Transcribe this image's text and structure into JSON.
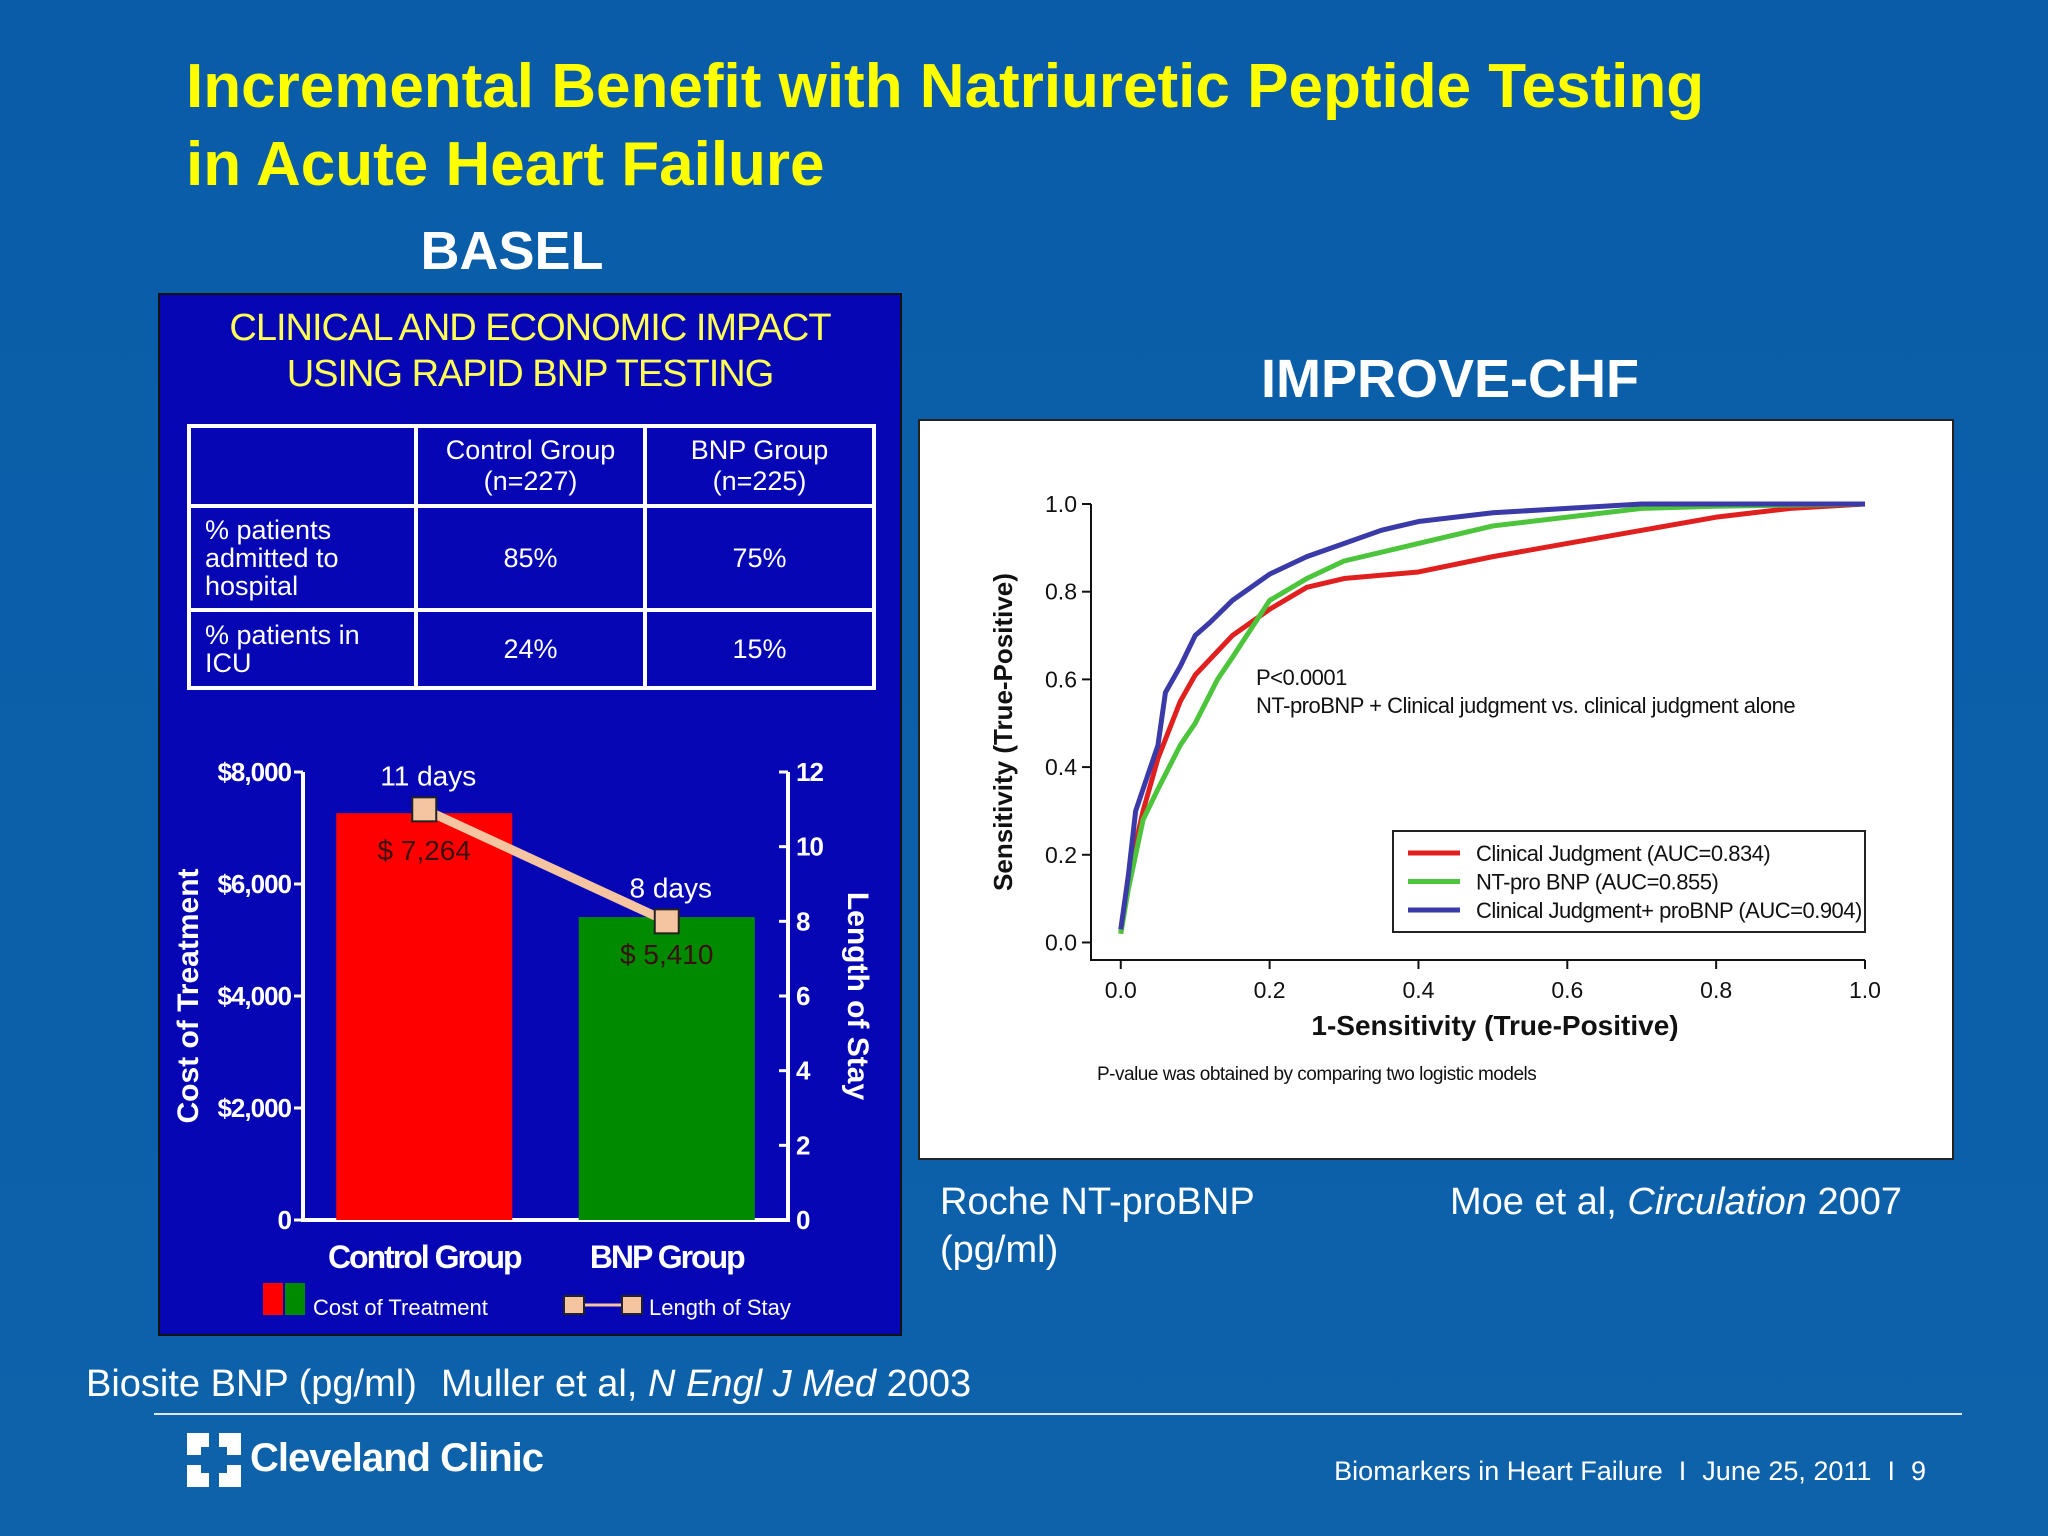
{
  "slide": {
    "title": "Incremental Benefit with Natriuretic Peptide Testing\nin Acute Heart Failure",
    "left_heading": "BASEL",
    "right_heading": "IMPROVE-CHF",
    "right_assay": "Roche NT-proBNP\n(pg/ml)",
    "right_citation": [
      "Moe et al, ",
      "Circulation",
      " 2007"
    ],
    "left_assay": "Biosite BNP (pg/ml)",
    "left_citation": [
      "Muller et al, ",
      "N Engl J Med",
      " 2003"
    ],
    "logo": "Cleveland Clinic",
    "footer": {
      "topic": "Biomarkers in Heart Failure",
      "separator": "I",
      "date": "June 25, 2011",
      "page": "9"
    }
  },
  "table": {
    "title": "CLINICAL AND ECONOMIC IMPACT\nUSING RAPID BNP TESTING",
    "header": [
      "Control Group\n(n=227)",
      "BNP Group\n(n=225)"
    ],
    "rows": [
      [
        "% patients\nadmitted to\nhospital",
        "85%",
        "75%"
      ],
      [
        "% patients in\nICU",
        "24%",
        "15%"
      ]
    ]
  },
  "chart_data": [
    {
      "type": "bar",
      "categories": [
        "Control Group",
        "BNP Group"
      ],
      "y_label": "Cost of Treatment",
      "y2_label": "Length of Stay",
      "ylim": [
        0,
        8000
      ],
      "yticks": [
        0,
        {
          "value": 2000,
          "label": "$2,000"
        },
        {
          "value": 4000,
          "label": "$4,000"
        },
        {
          "value": 6000,
          "label": "$6,000"
        },
        {
          "value": 8000,
          "label": "$8,000"
        }
      ],
      "y2lim": [
        0,
        12
      ],
      "y2ticks": [
        0,
        2,
        4,
        6,
        8,
        10,
        12
      ],
      "series": [
        {
          "name": "Cost of Treatment",
          "colors": [
            "#ff0000",
            "#008a00"
          ],
          "values": [
            7264,
            5410
          ],
          "value_labels": [
            "$ 7,264",
            "$ 5,410"
          ]
        },
        {
          "name": "Length of Stay",
          "type": "line",
          "axis": "y2",
          "color": "#f5c4a0",
          "values": [
            11,
            8
          ],
          "value_labels": [
            "11 days",
            "8 days"
          ]
        }
      ]
    },
    {
      "type": "line",
      "x_label": "1-Sensitivity (True-Positive)",
      "y_label": "Sensitivity (True-Positive)",
      "xlim": [
        -0.04,
        1.0
      ],
      "ylim": [
        -0.04,
        1.0
      ],
      "xticks": [
        {
          "value": 0,
          "label": "0.0"
        },
        0.2,
        0.4,
        0.6,
        0.8,
        {
          "value": 1,
          "label": "1.0"
        }
      ],
      "yticks": [
        {
          "value": 0,
          "label": "0.0"
        },
        0.2,
        0.4,
        0.6,
        0.8,
        {
          "value": 1,
          "label": "1.0"
        }
      ],
      "grid": false,
      "legend": "lower right",
      "annotations": [
        "P<0.0001",
        "NT-proBNP + Clinical judgment vs. clinical judgment alone"
      ],
      "footnote": "P-value was obtained by comparing two logistic models",
      "series": [
        {
          "name": "Clinical Judgment (AUC=0.834)",
          "color": "#e0201e",
          "x": [
            0,
            0.01,
            0.03,
            0.05,
            0.08,
            0.1,
            0.15,
            0.2,
            0.25,
            0.3,
            0.4,
            0.5,
            0.6,
            0.7,
            0.8,
            0.9,
            1.0
          ],
          "values": [
            0.02,
            0.15,
            0.3,
            0.42,
            0.55,
            0.61,
            0.7,
            0.76,
            0.81,
            0.83,
            0.845,
            0.88,
            0.91,
            0.94,
            0.97,
            0.99,
            1.0
          ]
        },
        {
          "name": "NT-pro BNP (AUC=0.855)",
          "color": "#4cc43c",
          "x": [
            0,
            0.01,
            0.02,
            0.03,
            0.05,
            0.08,
            0.1,
            0.13,
            0.15,
            0.2,
            0.25,
            0.3,
            0.4,
            0.5,
            0.6,
            0.7,
            0.8,
            1.0
          ],
          "values": [
            0.02,
            0.12,
            0.2,
            0.28,
            0.35,
            0.45,
            0.5,
            0.6,
            0.65,
            0.78,
            0.83,
            0.87,
            0.91,
            0.95,
            0.97,
            0.99,
            0.995,
            1.0
          ]
        },
        {
          "name": "Clinical Judgment+ proBNP (AUC=0.904)",
          "color": "#3a3aa8",
          "x": [
            0,
            0.01,
            0.02,
            0.04,
            0.05,
            0.06,
            0.08,
            0.1,
            0.12,
            0.15,
            0.2,
            0.25,
            0.3,
            0.35,
            0.4,
            0.5,
            0.6,
            0.7,
            1.0
          ],
          "values": [
            0.03,
            0.15,
            0.3,
            0.4,
            0.45,
            0.57,
            0.63,
            0.7,
            0.73,
            0.78,
            0.84,
            0.88,
            0.91,
            0.94,
            0.96,
            0.98,
            0.99,
            1.0,
            1.0
          ]
        }
      ]
    }
  ]
}
